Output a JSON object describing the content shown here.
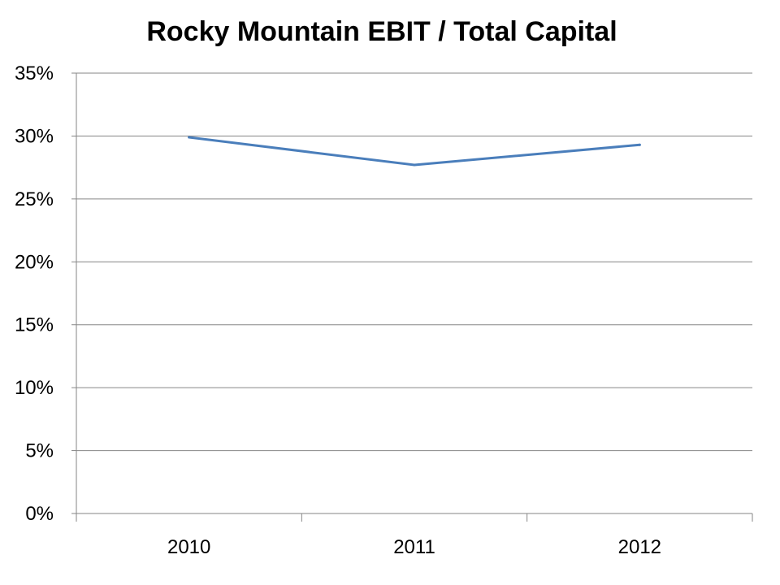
{
  "chart_data": {
    "type": "line",
    "title": "Rocky Mountain EBIT / Total Capital",
    "xlabel": "",
    "ylabel": "",
    "categories": [
      "2010",
      "2011",
      "2012"
    ],
    "series": [
      {
        "values": [
          29.9,
          27.7,
          29.3
        ],
        "color": "#4a7ebb"
      }
    ],
    "ylim": [
      0,
      35
    ],
    "yticks": [
      0,
      5,
      10,
      15,
      20,
      25,
      30,
      35
    ],
    "ytick_labels": [
      "0%",
      "5%",
      "10%",
      "15%",
      "20%",
      "25%",
      "30%",
      "35%"
    ],
    "grid": true,
    "legend": "none"
  }
}
